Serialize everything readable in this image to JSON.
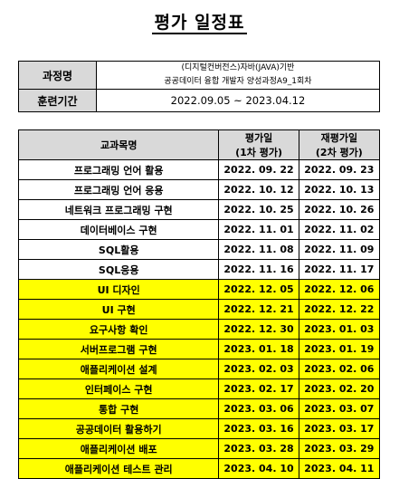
{
  "title": "평가 일정표",
  "info": {
    "course_label": "과정명",
    "course_line1": "(디지털컨버전스)자바(JAVA)기반",
    "course_line2": "공공데이터 융합 개발자 양성과정A9_1회차",
    "period_label": "훈련기간",
    "period_value": "2022.09.05  ~  2023.04.12"
  },
  "schedule": {
    "header": {
      "subject": "교과목명",
      "eval_line1": "평가일",
      "eval_line2": "(1차 평가)",
      "reeval_line1": "재평가일",
      "reeval_line2": "(2차 평가)"
    },
    "highlight_color": "#ffff00",
    "rows": [
      {
        "subject": "프로그래밍 언어 활용",
        "eval": "2022. 09. 22",
        "reeval": "2022. 09. 23",
        "highlight": false
      },
      {
        "subject": "프로그래밍 언어 응용",
        "eval": "2022. 10. 12",
        "reeval": "2022. 10. 13",
        "highlight": false
      },
      {
        "subject": "네트워크 프로그래밍 구현",
        "eval": "2022. 10. 25",
        "reeval": "2022. 10. 26",
        "highlight": false
      },
      {
        "subject": "데이터베이스 구현",
        "eval": "2022. 11. 01",
        "reeval": "2022. 11. 02",
        "highlight": false
      },
      {
        "subject": "SQL활용",
        "eval": "2022. 11. 08",
        "reeval": "2022. 11. 09",
        "highlight": false
      },
      {
        "subject": "SQL응용",
        "eval": "2022. 11. 16",
        "reeval": "2022. 11. 17",
        "highlight": false
      },
      {
        "subject": "UI 디자인",
        "eval": "2022. 12. 05",
        "reeval": "2022. 12. 06",
        "highlight": true
      },
      {
        "subject": "UI 구현",
        "eval": "2022. 12. 21",
        "reeval": "2022. 12. 22",
        "highlight": true
      },
      {
        "subject": "요구사항 확인",
        "eval": "2022. 12. 30",
        "reeval": "2023. 01. 03",
        "highlight": true
      },
      {
        "subject": "서버프로그램 구현",
        "eval": "2023. 01. 18",
        "reeval": "2023. 01. 19",
        "highlight": true
      },
      {
        "subject": "애플리케이션 설계",
        "eval": "2023. 02. 03",
        "reeval": "2023. 02. 06",
        "highlight": true
      },
      {
        "subject": "인터페이스 구현",
        "eval": "2023. 02. 17",
        "reeval": "2023. 02. 20",
        "highlight": true
      },
      {
        "subject": "통합 구현",
        "eval": "2023. 03. 06",
        "reeval": "2023. 03. 07",
        "highlight": true
      },
      {
        "subject": "공공데이터 활용하기",
        "eval": "2023. 03. 16",
        "reeval": "2023. 03. 17",
        "highlight": true
      },
      {
        "subject": "애플리케이션 배포",
        "eval": "2023. 03. 28",
        "reeval": "2023. 03. 29",
        "highlight": true
      },
      {
        "subject": "애플리케이션 테스트 관리",
        "eval": "2023. 04. 10",
        "reeval": "2023. 04. 11",
        "highlight": true
      }
    ]
  }
}
